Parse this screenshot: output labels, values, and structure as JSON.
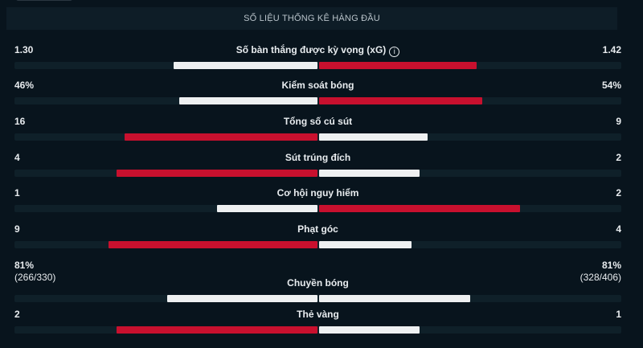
{
  "header": {
    "title": "SỐ LIỆU THỐNG KÊ HÀNG ĐẦU"
  },
  "colors": {
    "leader": "#c8102e",
    "other": "#eef0f1"
  },
  "stats": [
    {
      "label": "Số bàn thắng được kỳ vọng (xG)",
      "info_icon": "info-circle-icon",
      "home": "1.30",
      "away": "1.42",
      "home_value": 1.3,
      "away_value": 1.42
    },
    {
      "label": "Kiểm soát bóng",
      "home": "46%",
      "away": "54%",
      "home_value": 46,
      "away_value": 54
    },
    {
      "label": "Tổng số cú sút",
      "home": "16",
      "away": "9",
      "home_value": 16,
      "away_value": 9
    },
    {
      "label": "Sút trúng đích",
      "home": "4",
      "away": "2",
      "home_value": 4,
      "away_value": 2
    },
    {
      "label": "Cơ hội nguy hiểm",
      "home": "1",
      "away": "2",
      "home_value": 1,
      "away_value": 2
    },
    {
      "label": "Phạt góc",
      "home": "9",
      "away": "4",
      "home_value": 9,
      "away_value": 4
    },
    {
      "label": "Chuyền bóng",
      "home": "81%",
      "away": "81%",
      "home_sub": "(266/330)",
      "away_sub": "(328/406)",
      "home_value": 81,
      "away_value": 81
    },
    {
      "label": "Thẻ vàng",
      "home": "2",
      "away": "1",
      "home_value": 2,
      "away_value": 1
    }
  ]
}
